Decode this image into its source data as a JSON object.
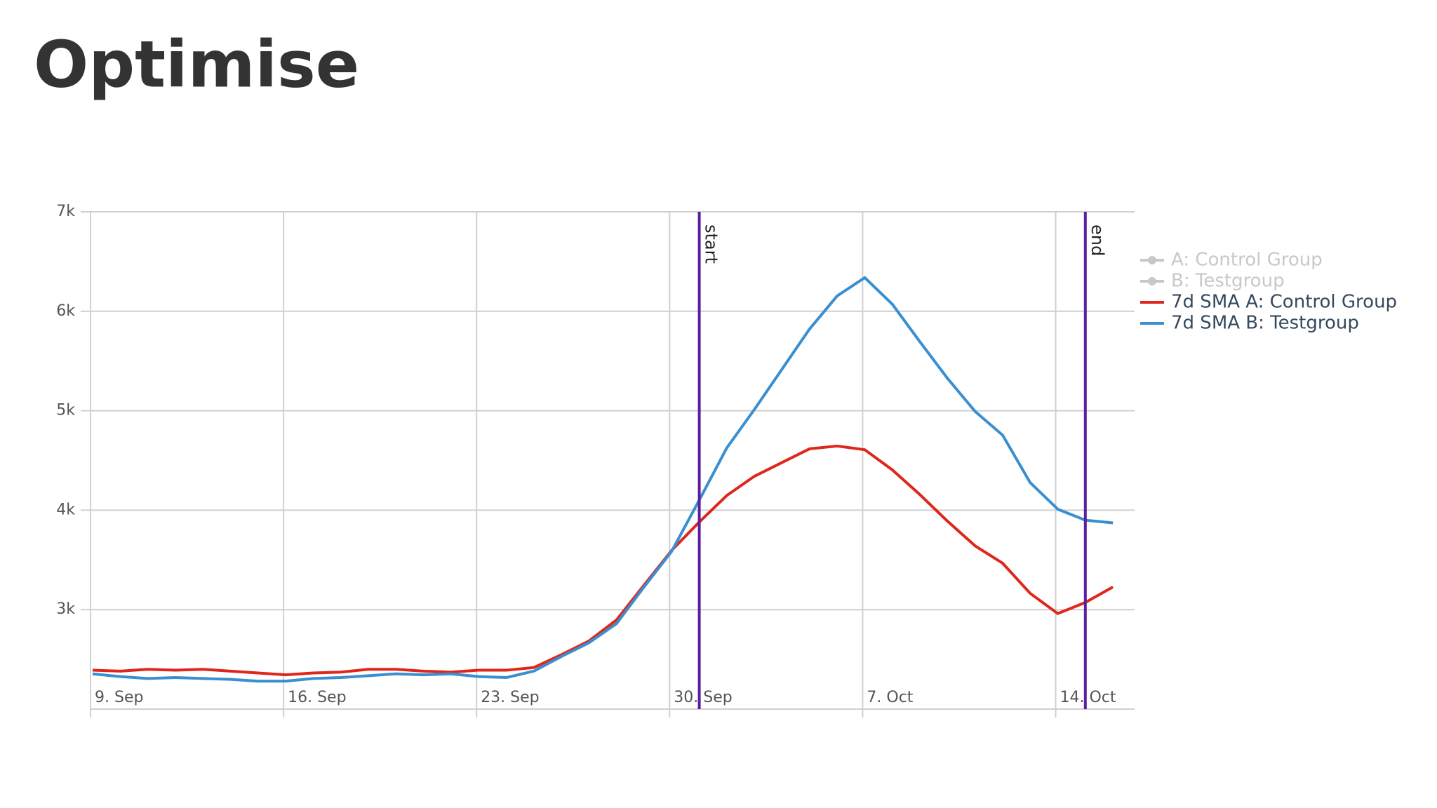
{
  "title": "Optimise",
  "chart_data": {
    "type": "line",
    "categories": [
      "9. Sep",
      null,
      null,
      null,
      null,
      null,
      null,
      "16. Sep",
      null,
      null,
      null,
      null,
      null,
      null,
      "23. Sep",
      null,
      null,
      null,
      null,
      null,
      null,
      "30. Sep",
      null,
      null,
      null,
      null,
      null,
      null,
      "7. Oct",
      null,
      null,
      null,
      null,
      null,
      null,
      "14. Oct",
      null,
      null
    ],
    "series": [
      {
        "name": "7d SMA A: Control Group",
        "color": "#e0261b",
        "values": [
          2391,
          2382,
          2400,
          2391,
          2400,
          2382,
          2363,
          2345,
          2363,
          2372,
          2400,
          2400,
          2382,
          2372,
          2391,
          2391,
          2418,
          2547,
          2685,
          2897,
          3247,
          3596,
          3881,
          4148,
          4341,
          4479,
          4617,
          4645,
          4608,
          4406,
          4157,
          3890,
          3642,
          3467,
          3164,
          2961,
          3072,
          3228
        ]
      },
      {
        "name": "7d SMA B: Testgroup",
        "color": "#3a8fd0",
        "values": [
          2354,
          2327,
          2308,
          2317,
          2308,
          2299,
          2281,
          2281,
          2308,
          2317,
          2336,
          2354,
          2345,
          2354,
          2327,
          2317,
          2382,
          2529,
          2667,
          2860,
          3229,
          3587,
          4102,
          4627,
          5013,
          5418,
          5822,
          6154,
          6338,
          6071,
          5694,
          5326,
          4994,
          4755,
          4277,
          4010,
          3900,
          3872
        ]
      }
    ],
    "hidden_series": [
      {
        "name": "A: Control Group",
        "color": "#c8c8c8"
      },
      {
        "name": "B: Testgroup",
        "color": "#c8c8c8"
      }
    ],
    "markers": [
      {
        "label": "start",
        "index": 22,
        "color": "#5b1f9e"
      },
      {
        "label": "end",
        "index": 36,
        "color": "#5b1f9e"
      }
    ],
    "ylim": [
      2000,
      7000
    ],
    "yticks": [
      {
        "value": 3000,
        "label": "3k"
      },
      {
        "value": 4000,
        "label": "4k"
      },
      {
        "value": 5000,
        "label": "5k"
      },
      {
        "value": 6000,
        "label": "6k"
      },
      {
        "value": 7000,
        "label": "7k"
      }
    ],
    "grid": true,
    "legend": "right"
  }
}
